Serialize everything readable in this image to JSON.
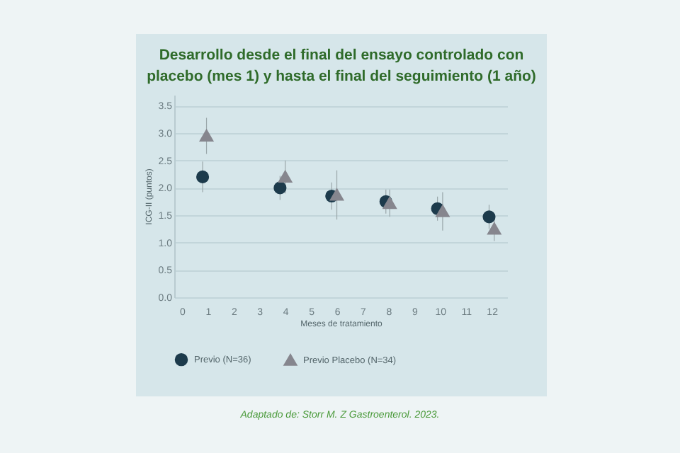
{
  "chart_data": {
    "type": "scatter",
    "title": "Desarrollo desde el final del ensayo controlado con placebo (mes 1) y hasta el final del seguimiento (1 año)",
    "xlabel": "Meses de tratamiento",
    "ylabel": "ICG-II (puntos)",
    "xlim": [
      -0.3,
      12.6
    ],
    "xticks": [
      0,
      1,
      2,
      3,
      4,
      5,
      6,
      7,
      8,
      9,
      10,
      11,
      12
    ],
    "ylim": [
      0,
      3.7
    ],
    "yticks": [
      {
        "value": 0,
        "label": "0.0"
      },
      0.5,
      {
        "value": 1,
        "label": "1.0"
      },
      1.5,
      {
        "value": 2,
        "label": "2.0"
      },
      2.5,
      {
        "value": 3,
        "label": "3.0"
      },
      3.5
    ],
    "grid": "y",
    "legend": "bottom",
    "annotations": [
      "Adaptado de: Storr M. Z Gastroenterol. 2023."
    ],
    "series": [
      {
        "name": "Previo (N=36)",
        "color": "#1d3b4c",
        "marker": "circle",
        "x": [
          0.8,
          3.8,
          5.8,
          7.9,
          9.9,
          11.9
        ],
        "values": [
          2.2,
          2.0,
          1.85,
          1.75,
          1.62,
          1.47
        ],
        "errors": [
          0.28,
          0.22,
          0.25,
          0.22,
          0.22,
          0.22
        ]
      },
      {
        "name": "Previo Placebo (N=34)",
        "color": "#86868e",
        "marker": "triangle",
        "x": [
          0.95,
          4.0,
          6.0,
          8.05,
          10.1,
          12.1
        ],
        "values": [
          2.95,
          2.2,
          1.87,
          1.72,
          1.57,
          1.25
        ],
        "errors": [
          0.33,
          0.3,
          0.45,
          0.25,
          0.35,
          0.22
        ]
      }
    ]
  }
}
